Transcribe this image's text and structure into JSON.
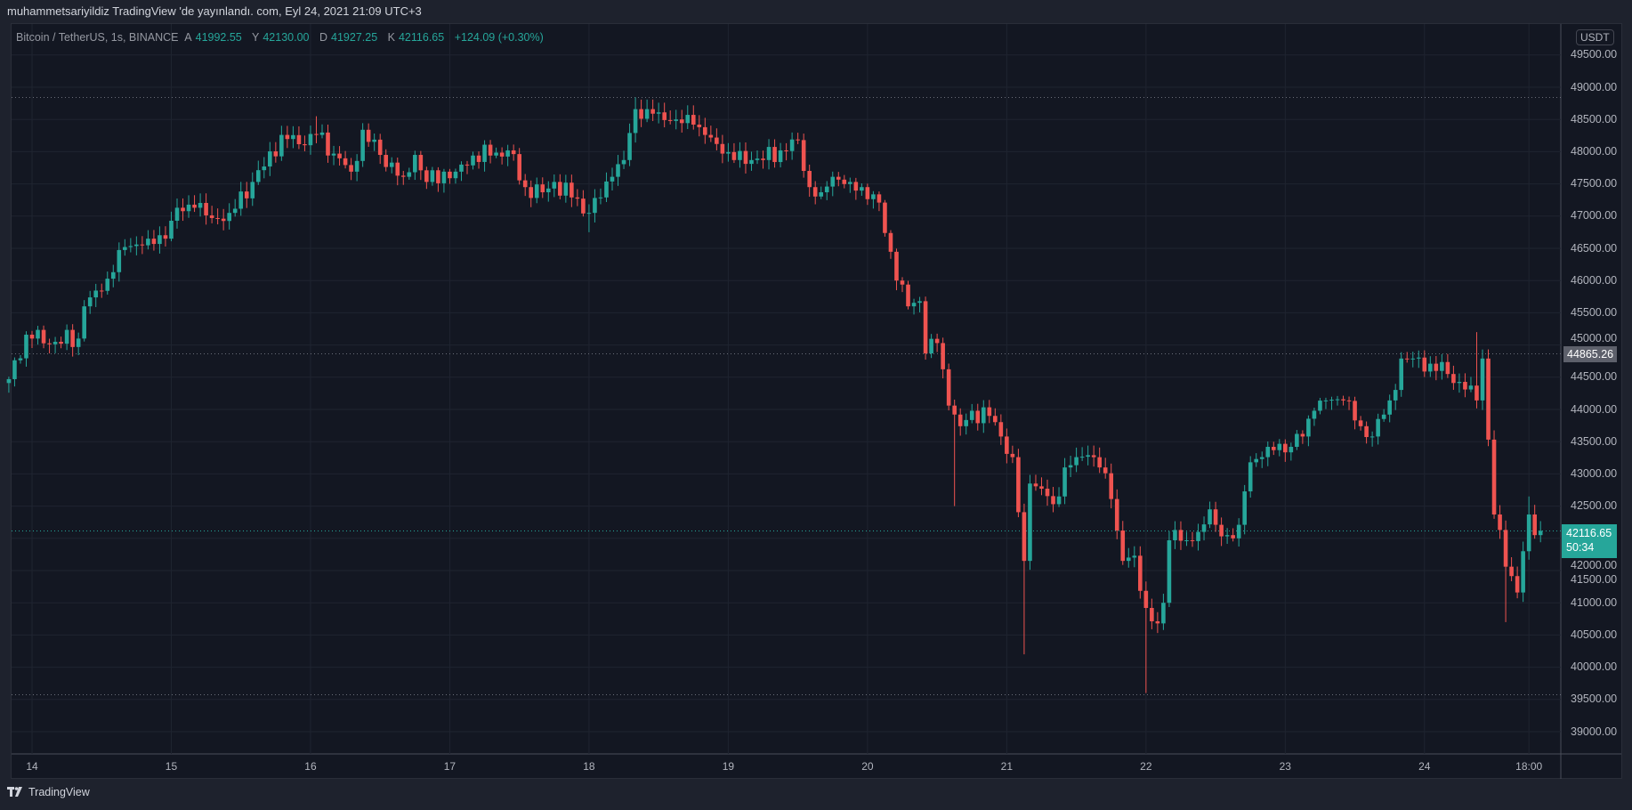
{
  "header": {
    "title": "muhammetsariyildiz TradingView 'de yayınlandı. com, Eyl 24, 2021 21:09 UTC+3"
  },
  "legend": {
    "symbol": "Bitcoin / TetherUS, 1s, BINANCE",
    "open_label": "A",
    "open": "41992.55",
    "high_label": "Y",
    "high": "42130.00",
    "low_label": "D",
    "low": "41927.25",
    "close_label": "K",
    "close": "42116.65",
    "change": "+124.09 (+0.30%)"
  },
  "currency_badge": "USDT",
  "price_labels": {
    "marker": "44865.26",
    "last_price": "42116.65",
    "countdown": "50:34"
  },
  "footer": {
    "brand": "TradingView"
  },
  "colors": {
    "up": "#26a69a",
    "down": "#ef5350",
    "background": "#131722",
    "grid": "#1f2430"
  },
  "chart_data": {
    "type": "candlestick",
    "title": "Bitcoin / TetherUS, 1s, BINANCE",
    "interval_hours": 1,
    "y_ticks": [
      "49500.00",
      "49000.00",
      "48500.00",
      "48000.00",
      "47500.00",
      "47000.00",
      "46500.00",
      "46000.00",
      "45500.00",
      "45000.00",
      "44500.00",
      "44000.00",
      "43500.00",
      "43000.00",
      "42500.00",
      "42000.00",
      "41500.00",
      "41000.00",
      "40500.00",
      "40000.00",
      "39500.00",
      "39000.00"
    ],
    "ylim": [
      38800,
      49700
    ],
    "x_ticks": [
      {
        "label": "14",
        "hour_index": 4
      },
      {
        "label": "15",
        "hour_index": 28
      },
      {
        "label": "16",
        "hour_index": 52
      },
      {
        "label": "17",
        "hour_index": 76
      },
      {
        "label": "18",
        "hour_index": 100
      },
      {
        "label": "19",
        "hour_index": 124
      },
      {
        "label": "20",
        "hour_index": 148
      },
      {
        "label": "21",
        "hour_index": 172
      },
      {
        "label": "22",
        "hour_index": 196
      },
      {
        "label": "23",
        "hour_index": 220
      },
      {
        "label": "24",
        "hour_index": 244
      },
      {
        "label": "18:00",
        "hour_index": 262
      }
    ],
    "horizontal_lines": [
      48850,
      44865.26,
      42116.65,
      39575
    ],
    "close_anchors": [
      [
        0,
        44470
      ],
      [
        3,
        45160
      ],
      [
        4,
        45100
      ],
      [
        8,
        45050
      ],
      [
        12,
        45100
      ],
      [
        13,
        45600
      ],
      [
        16,
        45840
      ],
      [
        18,
        46130
      ],
      [
        20,
        46520
      ],
      [
        24,
        46650
      ],
      [
        27,
        46650
      ],
      [
        29,
        47130
      ],
      [
        32,
        47130
      ],
      [
        35,
        46970
      ],
      [
        38,
        47050
      ],
      [
        42,
        47530
      ],
      [
        44,
        47770
      ],
      [
        47,
        48260
      ],
      [
        51,
        48100
      ],
      [
        53,
        48260
      ],
      [
        56,
        47970
      ],
      [
        59,
        47690
      ],
      [
        61,
        48340
      ],
      [
        64,
        47950
      ],
      [
        68,
        47610
      ],
      [
        70,
        47950
      ],
      [
        72,
        47530
      ],
      [
        75,
        47690
      ],
      [
        77,
        47690
      ],
      [
        80,
        47940
      ],
      [
        83,
        47940
      ],
      [
        86,
        48020
      ],
      [
        89,
        47450
      ],
      [
        92,
        47370
      ],
      [
        94,
        47530
      ],
      [
        97,
        47290
      ],
      [
        100,
        47050
      ],
      [
        102,
        47290
      ],
      [
        104,
        47610
      ],
      [
        106,
        47870
      ],
      [
        108,
        48660
      ],
      [
        110,
        48660
      ],
      [
        112,
        48610
      ],
      [
        115,
        48500
      ],
      [
        118,
        48420
      ],
      [
        120,
        48260
      ],
      [
        123,
        47970
      ],
      [
        125,
        47870
      ],
      [
        128,
        47870
      ],
      [
        130,
        47870
      ],
      [
        133,
        48020
      ],
      [
        136,
        48180
      ],
      [
        138,
        47450
      ],
      [
        140,
        47370
      ],
      [
        142,
        47610
      ],
      [
        145,
        47530
      ],
      [
        147,
        47450
      ],
      [
        150,
        47210
      ],
      [
        153,
        46000
      ],
      [
        155,
        45600
      ],
      [
        157,
        45680
      ],
      [
        158,
        44870
      ],
      [
        160,
        45030
      ],
      [
        162,
        44060
      ],
      [
        164,
        43740
      ],
      [
        166,
        43980
      ],
      [
        169,
        43900
      ],
      [
        171,
        43580
      ],
      [
        173,
        43260
      ],
      [
        175,
        41650
      ],
      [
        176,
        42850
      ],
      [
        178,
        42770
      ],
      [
        180,
        42530
      ],
      [
        182,
        43100
      ],
      [
        184,
        43260
      ],
      [
        186,
        43290
      ],
      [
        188,
        43100
      ],
      [
        190,
        42610
      ],
      [
        192,
        41650
      ],
      [
        194,
        41730
      ],
      [
        196,
        40920
      ],
      [
        198,
        40680
      ],
      [
        199,
        41000
      ],
      [
        200,
        41970
      ],
      [
        201,
        42130
      ],
      [
        203,
        41970
      ],
      [
        205,
        42100
      ],
      [
        207,
        42450
      ],
      [
        208,
        42210
      ],
      [
        210,
        42050
      ],
      [
        212,
        42210
      ],
      [
        214,
        43180
      ],
      [
        216,
        43260
      ],
      [
        217,
        43420
      ],
      [
        221,
        43420
      ],
      [
        223,
        43580
      ],
      [
        225,
        43980
      ],
      [
        227,
        44140
      ],
      [
        230,
        44140
      ],
      [
        233,
        43740
      ],
      [
        235,
        43580
      ],
      [
        238,
        44140
      ],
      [
        240,
        44790
      ],
      [
        242,
        44790
      ],
      [
        245,
        44710
      ],
      [
        248,
        44550
      ],
      [
        251,
        44310
      ],
      [
        253,
        44140
      ],
      [
        254,
        44790
      ],
      [
        256,
        42370
      ],
      [
        257,
        42130
      ],
      [
        258,
        41560
      ],
      [
        260,
        41160
      ],
      [
        261,
        41800
      ],
      [
        262,
        42370
      ],
      [
        263,
        42050
      ],
      [
        264,
        42116.65
      ]
    ],
    "wick_extremes": [
      [
        100,
        "low",
        46750
      ],
      [
        53,
        "high",
        48550
      ],
      [
        108,
        "high",
        48843
      ],
      [
        163,
        "low",
        42500
      ],
      [
        175,
        "low",
        40200
      ],
      [
        196,
        "low",
        39600
      ],
      [
        253,
        "high",
        45200
      ],
      [
        258,
        "low",
        40700
      ],
      [
        262,
        "high",
        42650
      ]
    ]
  }
}
